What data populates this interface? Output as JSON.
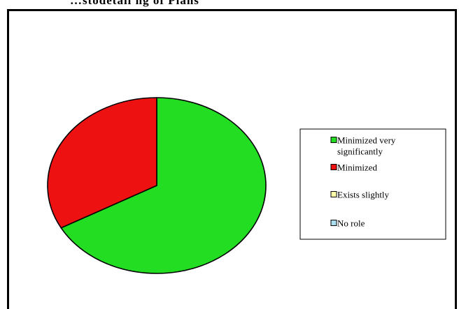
{
  "page_title": "…stodetail ng of Plans",
  "chart_data": {
    "type": "pie",
    "title": "",
    "slices": [
      {
        "label": "Minimized very significantly",
        "value": 67,
        "color": "#22dd22"
      },
      {
        "label": "Minimized",
        "value": 33,
        "color": "#ee1111"
      },
      {
        "label": "Exists slightly",
        "value": 0,
        "color": "#ffffaa"
      },
      {
        "label": "No role",
        "value": 0,
        "color": "#aaddee"
      }
    ],
    "legend": {
      "placement": "right",
      "entries": [
        {
          "lines": [
            "Minimized very",
            "significantly"
          ],
          "color": "#22dd22"
        },
        {
          "lines": [
            "Minimized"
          ],
          "color": "#ee1111"
        },
        {
          "lines": [
            "Exists slightly"
          ],
          "color": "#ffffaa"
        },
        {
          "lines": [
            "No role"
          ],
          "color": "#aaddee"
        }
      ]
    }
  }
}
